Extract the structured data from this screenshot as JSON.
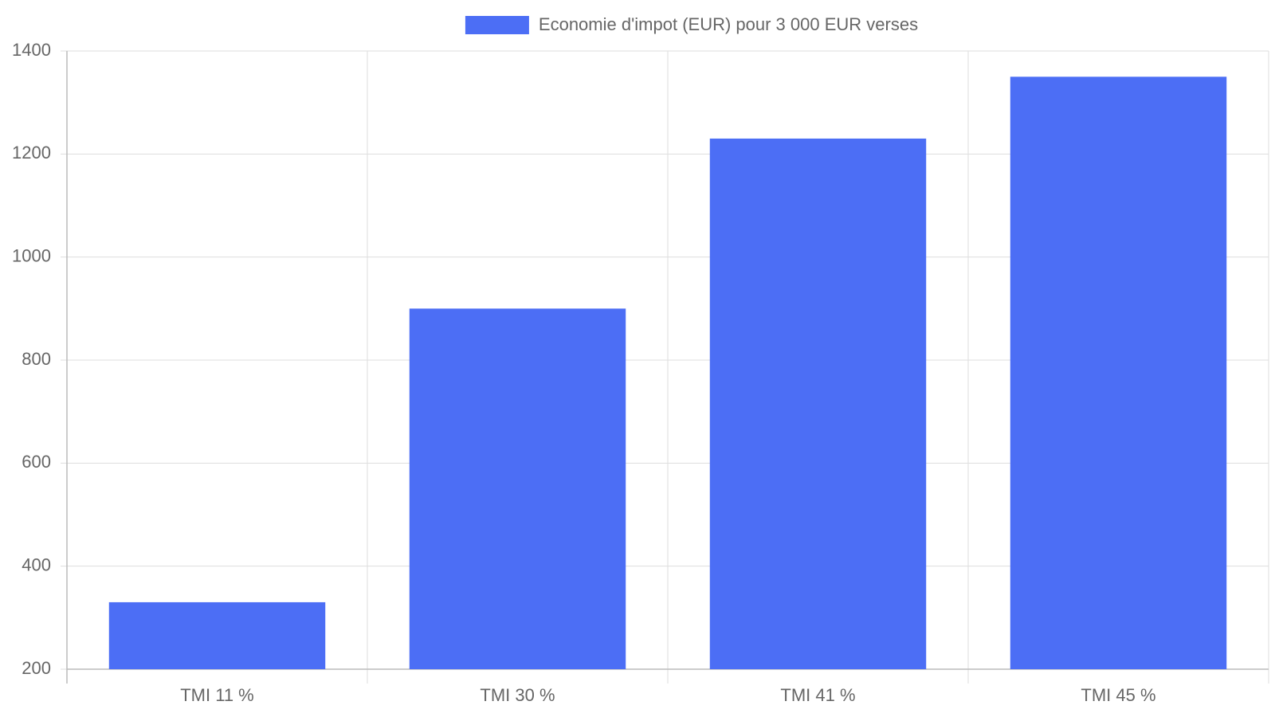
{
  "chart_data": {
    "type": "bar",
    "categories": [
      "TMI 11 %",
      "TMI 30 %",
      "TMI 41 %",
      "TMI 45 %"
    ],
    "series": [
      {
        "name": "Economie d'impot (EUR) pour 3 000 EUR verses",
        "color": "#4c6ef5",
        "values": [
          330,
          900,
          1230,
          1350
        ]
      }
    ],
    "ylim": [
      200,
      1400
    ],
    "yticks": [
      200,
      400,
      600,
      800,
      1000,
      1200,
      1400
    ],
    "grid": true,
    "legend": "top"
  }
}
